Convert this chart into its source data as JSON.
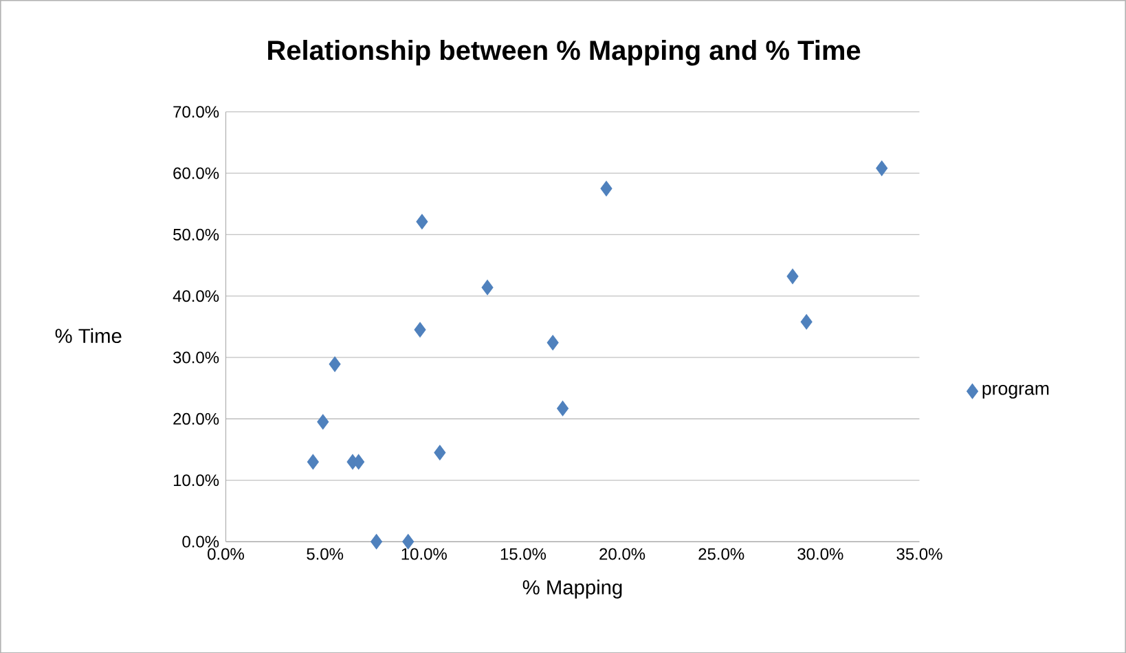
{
  "chart_data": {
    "type": "scatter",
    "title": "Relationship between % Mapping and % Time",
    "xlabel": "% Mapping",
    "ylabel": "% Time",
    "series": [
      {
        "name": "program",
        "color": "#4f81bd",
        "x": [
          4.4,
          4.9,
          5.5,
          6.4,
          6.7,
          7.6,
          9.2,
          9.9,
          9.8,
          10.8,
          13.2,
          16.5,
          17.0,
          19.2,
          28.6,
          29.3,
          33.1
        ],
        "values": [
          13.0,
          19.5,
          28.9,
          13.0,
          13.0,
          0.0,
          0.0,
          52.1,
          34.5,
          14.5,
          41.4,
          32.4,
          21.7,
          57.5,
          43.2,
          35.8,
          60.8
        ]
      }
    ],
    "xlim": [
      0,
      35
    ],
    "ylim": [
      0,
      70
    ],
    "xticks": [
      {
        "value": 0,
        "label": "0.0%"
      },
      {
        "value": 5,
        "label": "5.0%"
      },
      {
        "value": 10,
        "label": "10.0%"
      },
      {
        "value": 15,
        "label": "15.0%"
      },
      {
        "value": 20,
        "label": "20.0%"
      },
      {
        "value": 25,
        "label": "25.0%"
      },
      {
        "value": 30,
        "label": "30.0%"
      },
      {
        "value": 35,
        "label": "35.0%"
      }
    ],
    "yticks": [
      {
        "value": 0,
        "label": "0.0%"
      },
      {
        "value": 10,
        "label": "10.0%"
      },
      {
        "value": 20,
        "label": "20.0%"
      },
      {
        "value": 30,
        "label": "30.0%"
      },
      {
        "value": 40,
        "label": "40.0%"
      },
      {
        "value": 50,
        "label": "50.0%"
      },
      {
        "value": 60,
        "label": "60.0%"
      },
      {
        "value": 70,
        "label": "70.0%"
      }
    ],
    "grid": "y",
    "legend": "right",
    "marker": "diamond"
  }
}
